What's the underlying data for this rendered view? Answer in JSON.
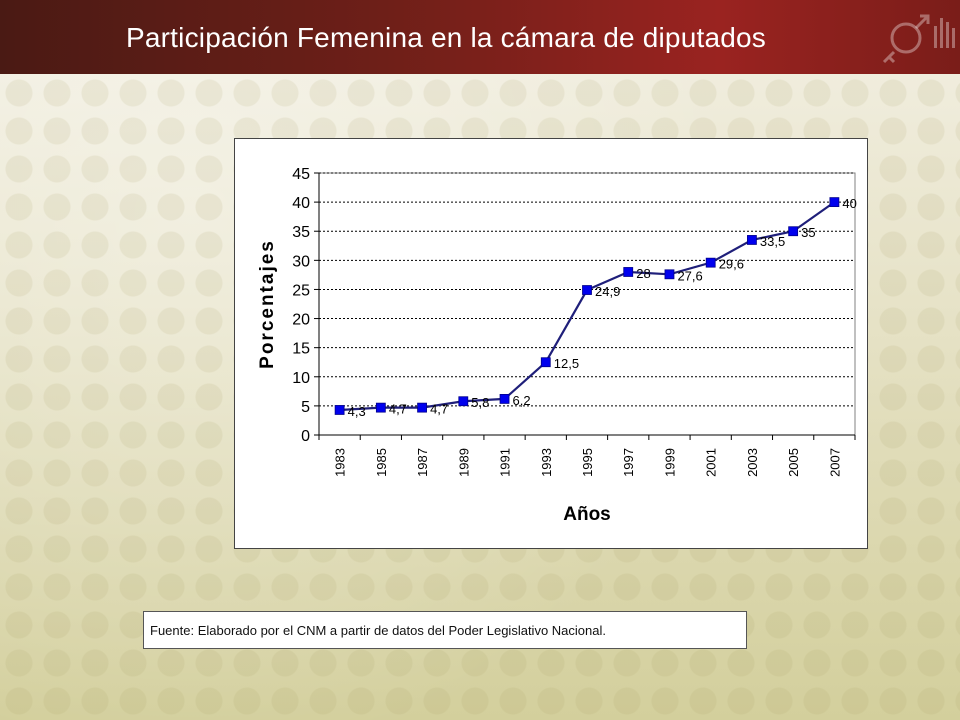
{
  "slide": {
    "title": "Participación Femenina en la cámara de diputados",
    "source": "Fuente: Elaborado por el CNM a partir de datos del Poder Legislativo Nacional."
  },
  "colors": {
    "banner": "#7a1d19",
    "line": "#1f1f7a",
    "marker": "#0000ee"
  },
  "chart_data": {
    "type": "line",
    "xlabel": "Años",
    "ylabel": "Porcentajes",
    "ylim": [
      0,
      45
    ],
    "yticks": [
      0,
      5,
      10,
      15,
      20,
      25,
      30,
      35,
      40,
      45
    ],
    "grid": true,
    "categories": [
      "1983",
      "1985",
      "1987",
      "1989",
      "1991",
      "1993",
      "1995",
      "1997",
      "1999",
      "2001",
      "2003",
      "2005",
      "2007"
    ],
    "values": [
      4.3,
      4.7,
      4.7,
      5.8,
      6.2,
      12.5,
      24.9,
      28,
      27.6,
      29.6,
      33.5,
      35,
      40
    ],
    "data_labels": [
      "4,3",
      "4,7",
      "4,7",
      "5,8",
      "6,2",
      "12,5",
      "24,9",
      "28",
      "27,6",
      "29,6",
      "33,5",
      "35",
      "40"
    ]
  }
}
